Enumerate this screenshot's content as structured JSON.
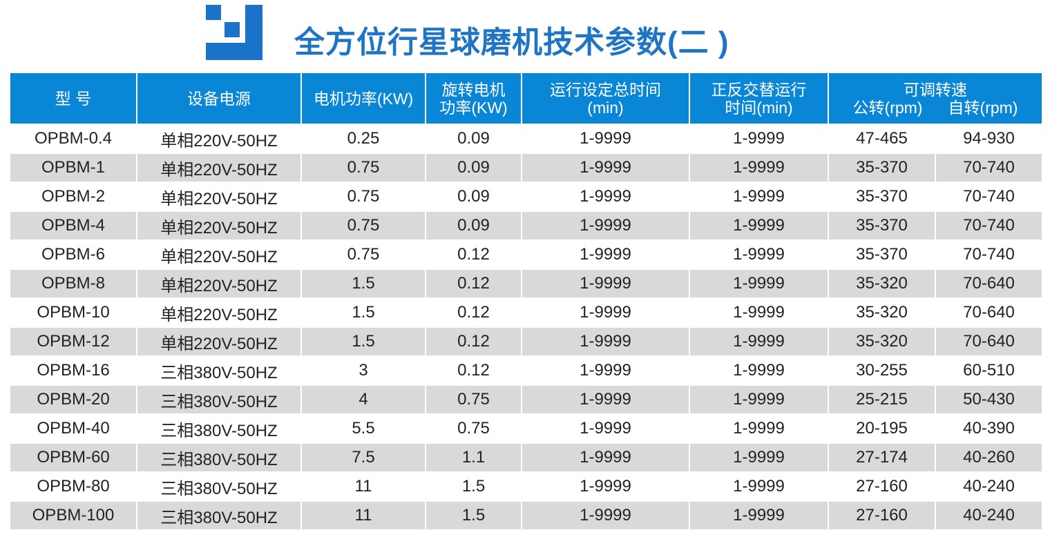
{
  "title": "全方位行星球磨机技术参数(二 )",
  "colors": {
    "header_bg": "#0a86d6",
    "title": "#1f74c4",
    "logo": "#1a73c8",
    "stripe": "#d9d9d9"
  },
  "headers": {
    "model": "型 号",
    "power_supply": "设备电源",
    "motor_power": "电机功率(KW)",
    "rotary_motor_line1": "旋转电机",
    "rotary_motor_line2": "功率(KW)",
    "total_time_line1": "运行设定总时间",
    "total_time_line2": "(min)",
    "alt_time_line1": "正反交替运行",
    "alt_time_line2": "时间(min)",
    "speed": "可调转速",
    "revolution": "公转(rpm)",
    "rotation": "自转(rpm)"
  },
  "rows": [
    {
      "model": "OPBM-0.4",
      "power": "单相220V-50HZ",
      "motor": "0.25",
      "rotary": "0.09",
      "total": "1-9999",
      "alt": "1-9999",
      "rev": "47-465",
      "rot": "94-930"
    },
    {
      "model": "OPBM-1",
      "power": "单相220V-50HZ",
      "motor": "0.75",
      "rotary": "0.09",
      "total": "1-9999",
      "alt": "1-9999",
      "rev": "35-370",
      "rot": "70-740"
    },
    {
      "model": "OPBM-2",
      "power": "单相220V-50HZ",
      "motor": "0.75",
      "rotary": "0.09",
      "total": "1-9999",
      "alt": "1-9999",
      "rev": "35-370",
      "rot": "70-740"
    },
    {
      "model": "OPBM-4",
      "power": "单相220V-50HZ",
      "motor": "0.75",
      "rotary": "0.09",
      "total": "1-9999",
      "alt": "1-9999",
      "rev": "35-370",
      "rot": "70-740"
    },
    {
      "model": "OPBM-6",
      "power": "单相220V-50HZ",
      "motor": "0.75",
      "rotary": "0.12",
      "total": "1-9999",
      "alt": "1-9999",
      "rev": "35-370",
      "rot": "70-740"
    },
    {
      "model": "OPBM-8",
      "power": "单相220V-50HZ",
      "motor": "1.5",
      "rotary": "0.12",
      "total": "1-9999",
      "alt": "1-9999",
      "rev": "35-320",
      "rot": "70-640"
    },
    {
      "model": "OPBM-10",
      "power": "单相220V-50HZ",
      "motor": "1.5",
      "rotary": "0.12",
      "total": "1-9999",
      "alt": "1-9999",
      "rev": "35-320",
      "rot": "70-640"
    },
    {
      "model": "OPBM-12",
      "power": "单相220V-50HZ",
      "motor": "1.5",
      "rotary": "0.12",
      "total": "1-9999",
      "alt": "1-9999",
      "rev": "35-320",
      "rot": "70-640"
    },
    {
      "model": "OPBM-16",
      "power": "三相380V-50HZ",
      "motor": "3",
      "rotary": "0.12",
      "total": "1-9999",
      "alt": "1-9999",
      "rev": "30-255",
      "rot": "60-510"
    },
    {
      "model": "OPBM-20",
      "power": "三相380V-50HZ",
      "motor": "4",
      "rotary": "0.75",
      "total": "1-9999",
      "alt": "1-9999",
      "rev": "25-215",
      "rot": "50-430"
    },
    {
      "model": "OPBM-40",
      "power": "三相380V-50HZ",
      "motor": "5.5",
      "rotary": "0.75",
      "total": "1-9999",
      "alt": "1-9999",
      "rev": "20-195",
      "rot": "40-390"
    },
    {
      "model": "OPBM-60",
      "power": "三相380V-50HZ",
      "motor": "7.5",
      "rotary": "1.1",
      "total": "1-9999",
      "alt": "1-9999",
      "rev": "27-174",
      "rot": "40-260"
    },
    {
      "model": "OPBM-80",
      "power": "三相380V-50HZ",
      "motor": "11",
      "rotary": "1.5",
      "total": "1-9999",
      "alt": "1-9999",
      "rev": "27-160",
      "rot": "40-240"
    },
    {
      "model": "OPBM-100",
      "power": "三相380V-50HZ",
      "motor": "11",
      "rotary": "1.5",
      "total": "1-9999",
      "alt": "1-9999",
      "rev": "27-160",
      "rot": "40-240"
    }
  ]
}
